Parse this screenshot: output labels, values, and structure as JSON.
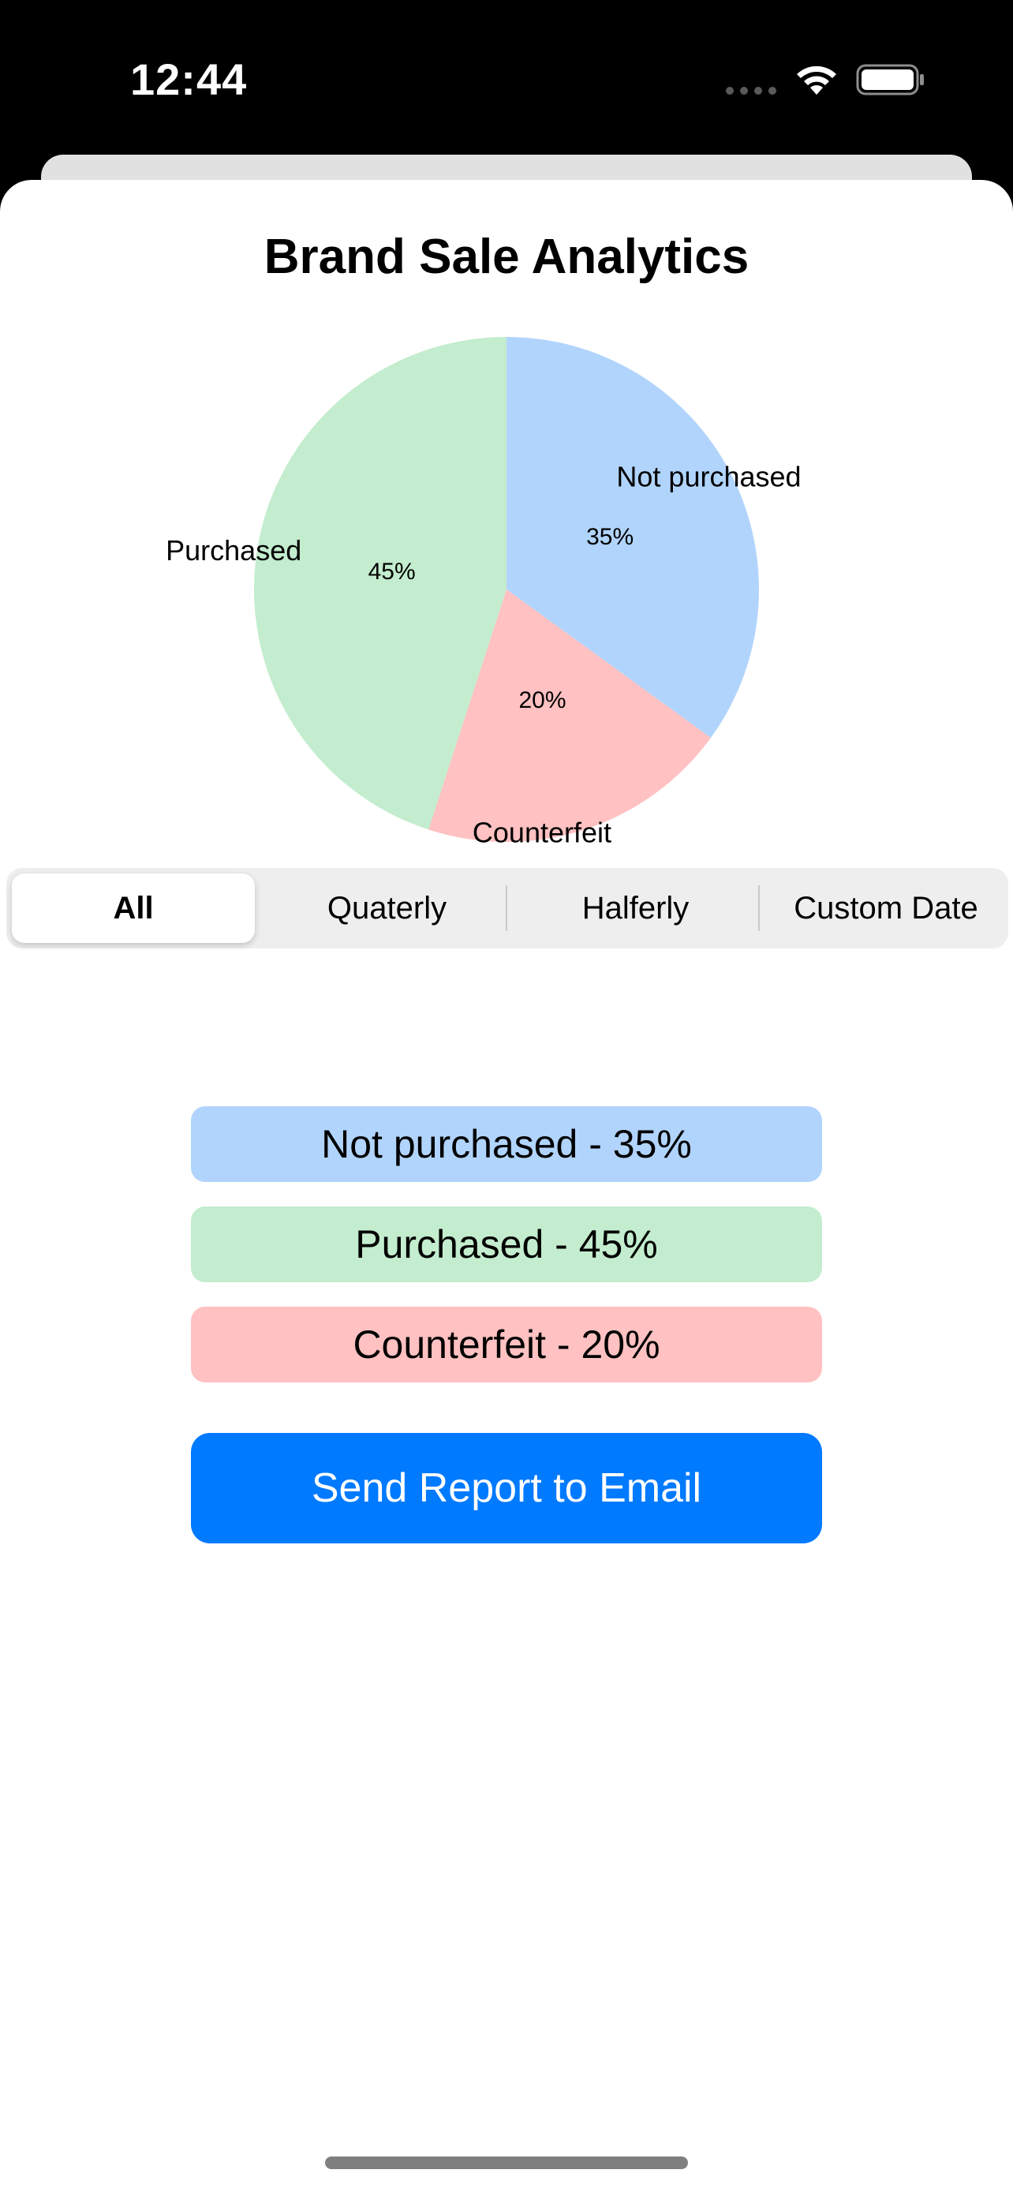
{
  "status_bar": {
    "time": "12:44"
  },
  "page": {
    "title": "Brand Sale Analytics"
  },
  "chart_data": {
    "type": "pie",
    "slices": [
      {
        "label": "Not purchased",
        "value": 35,
        "percent_label": "35%",
        "color": "#b1d4fc"
      },
      {
        "label": "Counterfeit",
        "value": 20,
        "percent_label": "20%",
        "color": "#ffc1c1"
      },
      {
        "label": "Purchased",
        "value": 45,
        "percent_label": "45%",
        "color": "#c3edce"
      }
    ],
    "title": ""
  },
  "filter": {
    "options": [
      "All",
      "Quaterly",
      "Halferly",
      "Custom Date"
    ],
    "selected": "All"
  },
  "legend": [
    {
      "text": "Not purchased - 35%",
      "color": "#b1d4fc"
    },
    {
      "text": "Purchased - 45%",
      "color": "#c3edce"
    },
    {
      "text": "Counterfeit - 20%",
      "color": "#ffc1c1"
    }
  ],
  "actions": {
    "send_report_label": "Send Report to Email"
  },
  "colors": {
    "accent": "#007aff"
  }
}
